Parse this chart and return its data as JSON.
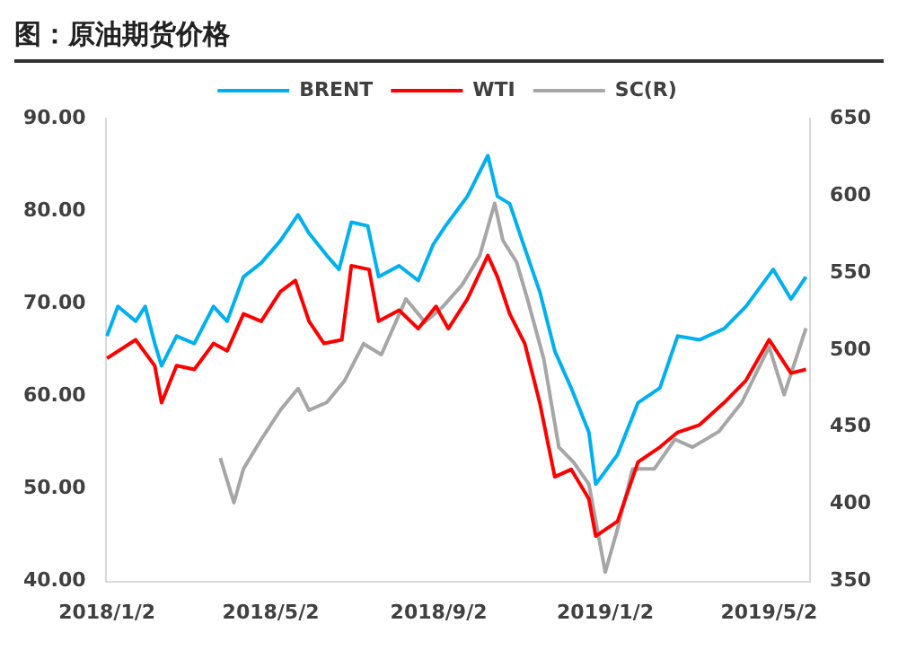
{
  "chart_data": {
    "type": "line",
    "title": "图：原油期货价格",
    "legend": "top",
    "marker": "none",
    "line_style": "solid",
    "grid": false,
    "xlim": [
      "2018-01-01",
      "2019-06-01"
    ],
    "xticks": [
      {
        "value": "2018-01-02",
        "label": "2018/1/2"
      },
      {
        "value": "2018-05-02",
        "label": "2018/5/2"
      },
      {
        "value": "2018-09-02",
        "label": "2018/9/2"
      },
      {
        "value": "2019-01-02",
        "label": "2019/1/2"
      },
      {
        "value": "2019-05-02",
        "label": "2019/5/2"
      }
    ],
    "ylim": [
      40,
      90
    ],
    "yticks": [
      {
        "value": 40,
        "label": "40.00"
      },
      {
        "value": 50,
        "label": "50.00"
      },
      {
        "value": 60,
        "label": "60.00"
      },
      {
        "value": 70,
        "label": "70.00"
      },
      {
        "value": 80,
        "label": "80.00"
      },
      {
        "value": 90,
        "label": "90.00"
      }
    ],
    "y2lim": [
      350,
      650
    ],
    "y2ticks": [
      350,
      400,
      450,
      500,
      550,
      600,
      650
    ],
    "series": [
      {
        "name": "BRENT",
        "color": "#00b0f0",
        "x": [
          "2018-01-02",
          "2018-01-10",
          "2018-01-23",
          "2018-01-30",
          "2018-02-06",
          "2018-02-11",
          "2018-02-22",
          "2018-03-07",
          "2018-03-21",
          "2018-03-31",
          "2018-04-12",
          "2018-04-25",
          "2018-05-09",
          "2018-05-22",
          "2018-05-30",
          "2018-06-12",
          "2018-06-21",
          "2018-06-30",
          "2018-07-12",
          "2018-07-20",
          "2018-08-04",
          "2018-08-18",
          "2018-08-29",
          "2018-09-07",
          "2018-09-23",
          "2018-10-08",
          "2018-10-15",
          "2018-10-24",
          "2018-11-04",
          "2018-11-15",
          "2018-11-26",
          "2018-12-08",
          "2018-12-21",
          "2018-12-26",
          "2019-01-11",
          "2019-01-26",
          "2019-02-11",
          "2019-02-24",
          "2019-03-12",
          "2019-03-30",
          "2019-04-15",
          "2019-05-05",
          "2019-05-18",
          "2019-05-29"
        ],
        "values": [
          66.5,
          69.7,
          68.1,
          69.7,
          65.7,
          63.3,
          66.5,
          65.7,
          69.7,
          68.1,
          72.9,
          74.4,
          76.8,
          79.6,
          77.6,
          75.2,
          73.7,
          78.8,
          78.4,
          72.9,
          74.1,
          72.5,
          76.4,
          78.4,
          81.6,
          86.0,
          81.6,
          80.8,
          76.0,
          71.3,
          64.9,
          60.9,
          56.1,
          50.5,
          53.7,
          59.3,
          60.9,
          66.5,
          66.1,
          67.3,
          69.7,
          73.7,
          70.5,
          72.9
        ]
      },
      {
        "name": "WTI",
        "color": "#ff0000",
        "x": [
          "2018-01-02",
          "2018-01-23",
          "2018-02-06",
          "2018-02-11",
          "2018-02-22",
          "2018-03-07",
          "2018-03-21",
          "2018-03-31",
          "2018-04-12",
          "2018-04-25",
          "2018-05-09",
          "2018-05-20",
          "2018-05-30",
          "2018-06-10",
          "2018-06-23",
          "2018-06-30",
          "2018-07-13",
          "2018-07-20",
          "2018-08-04",
          "2018-08-18",
          "2018-08-31",
          "2018-09-09",
          "2018-09-23",
          "2018-10-08",
          "2018-10-15",
          "2018-10-24",
          "2018-11-04",
          "2018-11-15",
          "2018-11-26",
          "2018-12-08",
          "2018-12-21",
          "2018-12-26",
          "2019-01-11",
          "2019-01-26",
          "2019-02-11",
          "2019-02-24",
          "2019-03-12",
          "2019-03-30",
          "2019-04-15",
          "2019-05-02",
          "2019-05-18",
          "2019-05-29"
        ],
        "values": [
          64.1,
          66.1,
          63.3,
          59.3,
          63.3,
          62.9,
          65.7,
          64.9,
          68.9,
          68.1,
          71.3,
          72.5,
          68.1,
          65.7,
          66.1,
          74.1,
          73.7,
          68.1,
          69.3,
          67.3,
          69.7,
          67.3,
          70.5,
          75.2,
          72.9,
          68.9,
          65.7,
          59.3,
          51.3,
          52.1,
          48.9,
          44.9,
          46.5,
          52.9,
          54.5,
          56.1,
          56.9,
          59.3,
          61.7,
          66.1,
          62.5,
          62.9
        ]
      },
      {
        "name": "SC(R)",
        "color": "#a6a6a6",
        "axis": "y2",
        "x": [
          "2018-03-26",
          "2018-04-05",
          "2018-04-12",
          "2018-04-25",
          "2018-05-09",
          "2018-05-22",
          "2018-05-30",
          "2018-06-12",
          "2018-06-25",
          "2018-07-09",
          "2018-07-22",
          "2018-08-09",
          "2018-08-23",
          "2018-09-05",
          "2018-09-19",
          "2018-10-02",
          "2018-10-13",
          "2018-10-19",
          "2018-10-29",
          "2018-11-06",
          "2018-11-18",
          "2018-11-29",
          "2018-12-10",
          "2018-12-21",
          "2019-01-02",
          "2019-01-11",
          "2019-01-22",
          "2019-02-07",
          "2019-02-22",
          "2019-03-07",
          "2019-03-26",
          "2019-04-12",
          "2019-05-02",
          "2019-05-13",
          "2019-05-29"
        ],
        "values": [
          430,
          401,
          423,
          442,
          461,
          475,
          461,
          466,
          480,
          504,
          497,
          533,
          518,
          528,
          542,
          561,
          595,
          571,
          557,
          533,
          494,
          437,
          427,
          413,
          356,
          384,
          423,
          423,
          442,
          437,
          447,
          466,
          502,
          471,
          514
        ]
      }
    ]
  }
}
